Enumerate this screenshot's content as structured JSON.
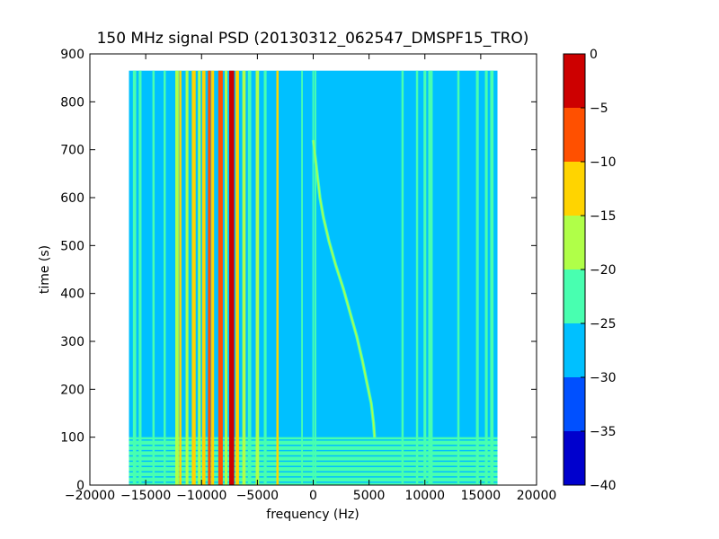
{
  "chart_data": {
    "type": "heatmap",
    "title": "150 MHz signal PSD (20130312_062547_DMSPF15_TRO)",
    "xlabel": "frequency (Hz)",
    "ylabel": "time (s)",
    "xlim": [
      -20000,
      20000
    ],
    "ylim": [
      0,
      900
    ],
    "x_ticks": [
      -20000,
      -15000,
      -10000,
      -5000,
      0,
      5000,
      10000,
      15000,
      20000
    ],
    "y_ticks": [
      0,
      100,
      200,
      300,
      400,
      500,
      600,
      700,
      800,
      900
    ],
    "data_extent": {
      "x": [
        -16500,
        16500
      ],
      "y": [
        0,
        865
      ]
    },
    "colorbar": {
      "range": [
        -40,
        0
      ],
      "ticks": [
        0,
        -5,
        -10,
        -15,
        -20,
        -25,
        -30,
        -35,
        -40
      ],
      "levels": [
        {
          "from": -40,
          "to": -35,
          "color": "#0000cd"
        },
        {
          "from": -35,
          "to": -30,
          "color": "#0050ff"
        },
        {
          "from": -30,
          "to": -25,
          "color": "#00c0ff"
        },
        {
          "from": -25,
          "to": -20,
          "color": "#48ffb0"
        },
        {
          "from": -20,
          "to": -15,
          "color": "#b0ff48"
        },
        {
          "from": -15,
          "to": -10,
          "color": "#ffd400"
        },
        {
          "from": -10,
          "to": -5,
          "color": "#ff5000"
        },
        {
          "from": -5,
          "to": 0,
          "color": "#cd0000"
        }
      ]
    },
    "background_level": -27.5,
    "noise_band": {
      "time_range": [
        0,
        100
      ],
      "level": -22.5
    },
    "lines": [
      {
        "freq": -16000,
        "width_hz": 300,
        "level": -22.5
      },
      {
        "freq": -15500,
        "width_hz": 250,
        "level": -22.5
      },
      {
        "freq": -14300,
        "width_hz": 200,
        "level": -22.5
      },
      {
        "freq": -13300,
        "width_hz": 200,
        "level": -22.5
      },
      {
        "freq": -12200,
        "width_hz": 300,
        "level": -17.5
      },
      {
        "freq": -11900,
        "width_hz": 200,
        "level": -12.5
      },
      {
        "freq": -11300,
        "width_hz": 250,
        "level": -17.5
      },
      {
        "freq": -10700,
        "width_hz": 350,
        "level": -12.5
      },
      {
        "freq": -10200,
        "width_hz": 250,
        "level": -17.5
      },
      {
        "freq": -9800,
        "width_hz": 300,
        "level": -12.5
      },
      {
        "freq": -9300,
        "width_hz": 250,
        "level": -7.5
      },
      {
        "freq": -9000,
        "width_hz": 250,
        "level": -12.5
      },
      {
        "freq": -8300,
        "width_hz": 400,
        "level": -7.5
      },
      {
        "freq": -7800,
        "width_hz": 250,
        "level": -17.5
      },
      {
        "freq": -7300,
        "width_hz": 450,
        "level": -2.5
      },
      {
        "freq": -6800,
        "width_hz": 300,
        "level": -12.5
      },
      {
        "freq": -6200,
        "width_hz": 300,
        "level": -17.5
      },
      {
        "freq": -5700,
        "width_hz": 300,
        "level": -22.5
      },
      {
        "freq": -5000,
        "width_hz": 300,
        "level": -17.5
      },
      {
        "freq": -4300,
        "width_hz": 250,
        "level": -22.5
      },
      {
        "freq": -3200,
        "width_hz": 200,
        "level": -12.5
      },
      {
        "freq": -1000,
        "width_hz": 150,
        "level": -22.5
      },
      {
        "freq": 0,
        "width_hz": 150,
        "level": -22.5
      },
      {
        "freq": 200,
        "width_hz": 150,
        "level": -22.5
      },
      {
        "freq": 8000,
        "width_hz": 200,
        "level": -22.5
      },
      {
        "freq": 9300,
        "width_hz": 200,
        "level": -22.5
      },
      {
        "freq": 10000,
        "width_hz": 250,
        "level": -22.5
      },
      {
        "freq": 10500,
        "width_hz": 400,
        "level": -22.5
      },
      {
        "freq": 13000,
        "width_hz": 200,
        "level": -22.5
      },
      {
        "freq": 14700,
        "width_hz": 250,
        "level": -22.5
      },
      {
        "freq": 15500,
        "width_hz": 250,
        "level": -22.5
      },
      {
        "freq": 16000,
        "width_hz": 300,
        "level": -22.5
      }
    ],
    "doppler_trace": {
      "level": -17.5,
      "points": [
        [
          0,
          720
        ],
        [
          200,
          680
        ],
        [
          400,
          640
        ],
        [
          600,
          600
        ],
        [
          900,
          560
        ],
        [
          1400,
          510
        ],
        [
          2000,
          460
        ],
        [
          2700,
          410
        ],
        [
          3300,
          360
        ],
        [
          3900,
          310
        ],
        [
          4400,
          260
        ],
        [
          4800,
          215
        ],
        [
          5200,
          170
        ],
        [
          5400,
          130
        ],
        [
          5500,
          100
        ]
      ]
    }
  }
}
